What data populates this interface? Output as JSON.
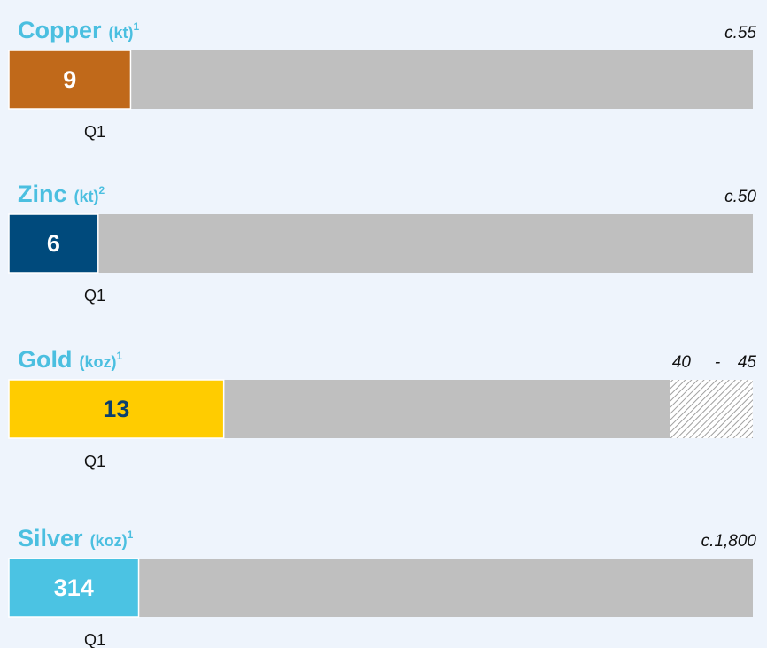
{
  "chart_data": [
    {
      "type": "bar",
      "title": "Copper",
      "unit": "(kt)",
      "footnote": "1",
      "categories": [
        "Q1"
      ],
      "values": [
        9
      ],
      "color": "#c0691a",
      "label_color": "#ffffff",
      "target": {
        "value": 55,
        "label": "c.55"
      },
      "xlim": [
        0,
        55
      ]
    },
    {
      "type": "bar",
      "title": "Zinc",
      "unit": "(kt)",
      "footnote": "2",
      "categories": [
        "Q1"
      ],
      "values": [
        6
      ],
      "color": "#004a7c",
      "label_color": "#ffffff",
      "target": {
        "value": 50,
        "label": "c.50"
      },
      "xlim": [
        0,
        50
      ]
    },
    {
      "type": "bar",
      "title": "Gold",
      "unit": "(koz)",
      "footnote": "1",
      "categories": [
        "Q1"
      ],
      "values": [
        13
      ],
      "color": "#ffcc00",
      "label_color": "#0b3f6e",
      "target_low": 40,
      "target_sep": "-",
      "target_high": 45,
      "xlim": [
        0,
        45
      ]
    },
    {
      "type": "bar",
      "title": "Silver",
      "unit": "(koz)",
      "footnote": "1",
      "categories": [
        "Q1"
      ],
      "values": [
        314
      ],
      "color": "#4bc3e3",
      "label_color": "#ffffff",
      "target": {
        "value": 1800,
        "label": "c.1,800"
      },
      "xlim": [
        0,
        1800
      ]
    }
  ]
}
